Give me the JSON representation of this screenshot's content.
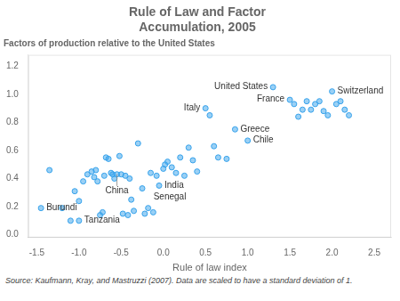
{
  "chart_data": {
    "type": "scatter",
    "title": "Rule of Law and Factor\nAccumulation, 2005",
    "subtitle": "Factors of production relative to the United States",
    "xlabel": "Rule of law index",
    "source": "Source: Kaufmann, Kray, and Mastruzzi (2007). Data are scaled to have a standard deviation of 1.",
    "xlim": [
      -1.6,
      2.7
    ],
    "ylim": [
      -0.02,
      1.28
    ],
    "xticks": [
      -1.5,
      {
        "value": -1.0,
        "label": "-1.0"
      },
      -0.5,
      {
        "value": 0.0,
        "label": "0.0"
      },
      0.5,
      {
        "value": 1.0,
        "label": "1.0"
      },
      1.5,
      {
        "value": 2.0,
        "label": "2.0"
      },
      2.5
    ],
    "yticks": [
      {
        "value": 0.0,
        "label": "0.0"
      },
      0.2,
      0.4,
      0.6,
      0.8,
      {
        "value": 1.0,
        "label": "1.0"
      },
      1.2
    ],
    "grid": false,
    "x": [
      -1.45,
      -1.35,
      -1.2,
      -1.1,
      -1.05,
      -1.0,
      -1.0,
      -0.95,
      -0.9,
      -0.85,
      -0.82,
      -0.8,
      -0.78,
      -0.75,
      -0.72,
      -0.7,
      -0.68,
      -0.65,
      -0.62,
      -0.6,
      -0.58,
      -0.55,
      -0.52,
      -0.5,
      -0.48,
      -0.45,
      -0.42,
      -0.4,
      -0.38,
      -0.35,
      -0.3,
      -0.25,
      -0.22,
      -0.18,
      -0.15,
      -0.12,
      -0.08,
      -0.05,
      0.0,
      0.02,
      0.05,
      0.1,
      0.15,
      0.2,
      0.25,
      0.3,
      0.35,
      0.4,
      0.5,
      0.55,
      0.6,
      0.65,
      0.75,
      0.85,
      1.0,
      1.3,
      1.5,
      1.55,
      1.6,
      1.65,
      1.7,
      1.75,
      1.8,
      1.85,
      1.9,
      1.95,
      2.0,
      2.05,
      2.1,
      2.15,
      2.2
    ],
    "values": [
      0.19,
      0.46,
      0.19,
      0.1,
      0.31,
      0.24,
      0.1,
      0.38,
      0.43,
      0.45,
      0.41,
      0.46,
      0.38,
      0.14,
      0.16,
      0.42,
      0.55,
      0.54,
      0.44,
      0.43,
      0.4,
      0.43,
      0.56,
      0.43,
      0.15,
      0.42,
      0.14,
      0.4,
      0.25,
      0.17,
      0.65,
      0.33,
      0.15,
      0.19,
      0.44,
      0.16,
      0.42,
      0.35,
      0.47,
      0.5,
      0.52,
      0.48,
      0.44,
      0.55,
      0.42,
      0.62,
      0.53,
      0.45,
      0.9,
      0.85,
      0.63,
      0.55,
      0.54,
      0.75,
      0.67,
      1.05,
      0.96,
      0.93,
      0.84,
      0.89,
      0.95,
      0.89,
      0.93,
      0.95,
      0.88,
      0.85,
      1.02,
      0.93,
      0.95,
      0.89,
      0.85
    ],
    "annotations": [
      {
        "text": "Burundi",
        "x": -1.45,
        "y": 0.19
      },
      {
        "text": "Tanzania",
        "x": -1.0,
        "y": 0.1
      },
      {
        "text": "China",
        "x": -0.55,
        "y": 0.43
      },
      {
        "text": "India",
        "x": -0.05,
        "y": 0.35
      },
      {
        "text": "Senegal",
        "x": -0.18,
        "y": 0.19
      },
      {
        "text": "Italy",
        "x": 0.5,
        "y": 0.9
      },
      {
        "text": "Greece",
        "x": 0.85,
        "y": 0.75
      },
      {
        "text": "Chile",
        "x": 1.0,
        "y": 0.67
      },
      {
        "text": "France",
        "x": 1.5,
        "y": 0.96
      },
      {
        "text": "United States",
        "x": 1.3,
        "y": 1.05
      },
      {
        "text": "Switzerland",
        "x": 2.0,
        "y": 1.02
      }
    ]
  }
}
